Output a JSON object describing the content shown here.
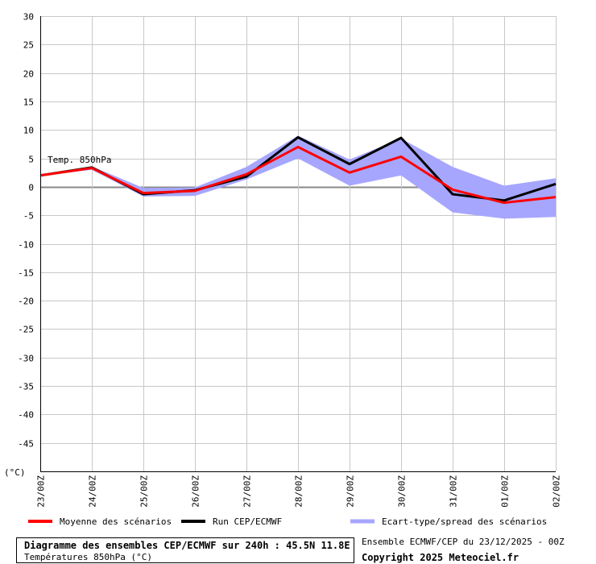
{
  "chart_data": {
    "type": "line",
    "x": [
      "23/00Z",
      "24/00Z",
      "25/00Z",
      "26/00Z",
      "27/00Z",
      "28/00Z",
      "29/00Z",
      "30/00Z",
      "31/00Z",
      "01/00Z",
      "02/00Z"
    ],
    "ylim": [
      -50,
      30
    ],
    "yticks": [
      30,
      25,
      20,
      15,
      10,
      5,
      0,
      -5,
      -10,
      -15,
      -20,
      -25,
      -30,
      -35,
      -40,
      -45
    ],
    "yunit": "(°C)",
    "grid": true,
    "annotation": "Temp. 850hPa",
    "series": [
      {
        "name": "Moyenne des scénarios",
        "color": "#ff0000",
        "values": [
          2.0,
          3.3,
          -1.1,
          -0.7,
          2.2,
          7.0,
          2.5,
          5.3,
          -0.5,
          -2.8,
          -1.8
        ]
      },
      {
        "name": "Run CEP/ECMWF",
        "color": "#000000",
        "values": [
          2.0,
          3.4,
          -1.3,
          -0.6,
          1.8,
          8.7,
          4.0,
          8.6,
          -1.3,
          -2.4,
          0.5
        ]
      }
    ],
    "band": {
      "name": "Ecart-type/spread des scénarios",
      "color": "#a6a6ff",
      "upper": [
        2.1,
        3.6,
        -0.2,
        -0.1,
        3.5,
        9.0,
        4.8,
        8.5,
        3.5,
        0.2,
        1.5
      ],
      "lower": [
        1.9,
        3.0,
        -1.7,
        -1.6,
        1.3,
        5.0,
        0.2,
        2.0,
        -4.5,
        -5.6,
        -5.3
      ]
    }
  },
  "footer": {
    "title": "Diagramme des ensembles CEP/ECMWF sur 240h : 45.5N 11.8E",
    "subtitle": "Températures 850hPa (°C)",
    "ensemble_label": "Ensemble ECMWF/CEP du 23/12/2025 - 00Z",
    "copyright": "Copyright 2025 Meteociel.fr"
  }
}
